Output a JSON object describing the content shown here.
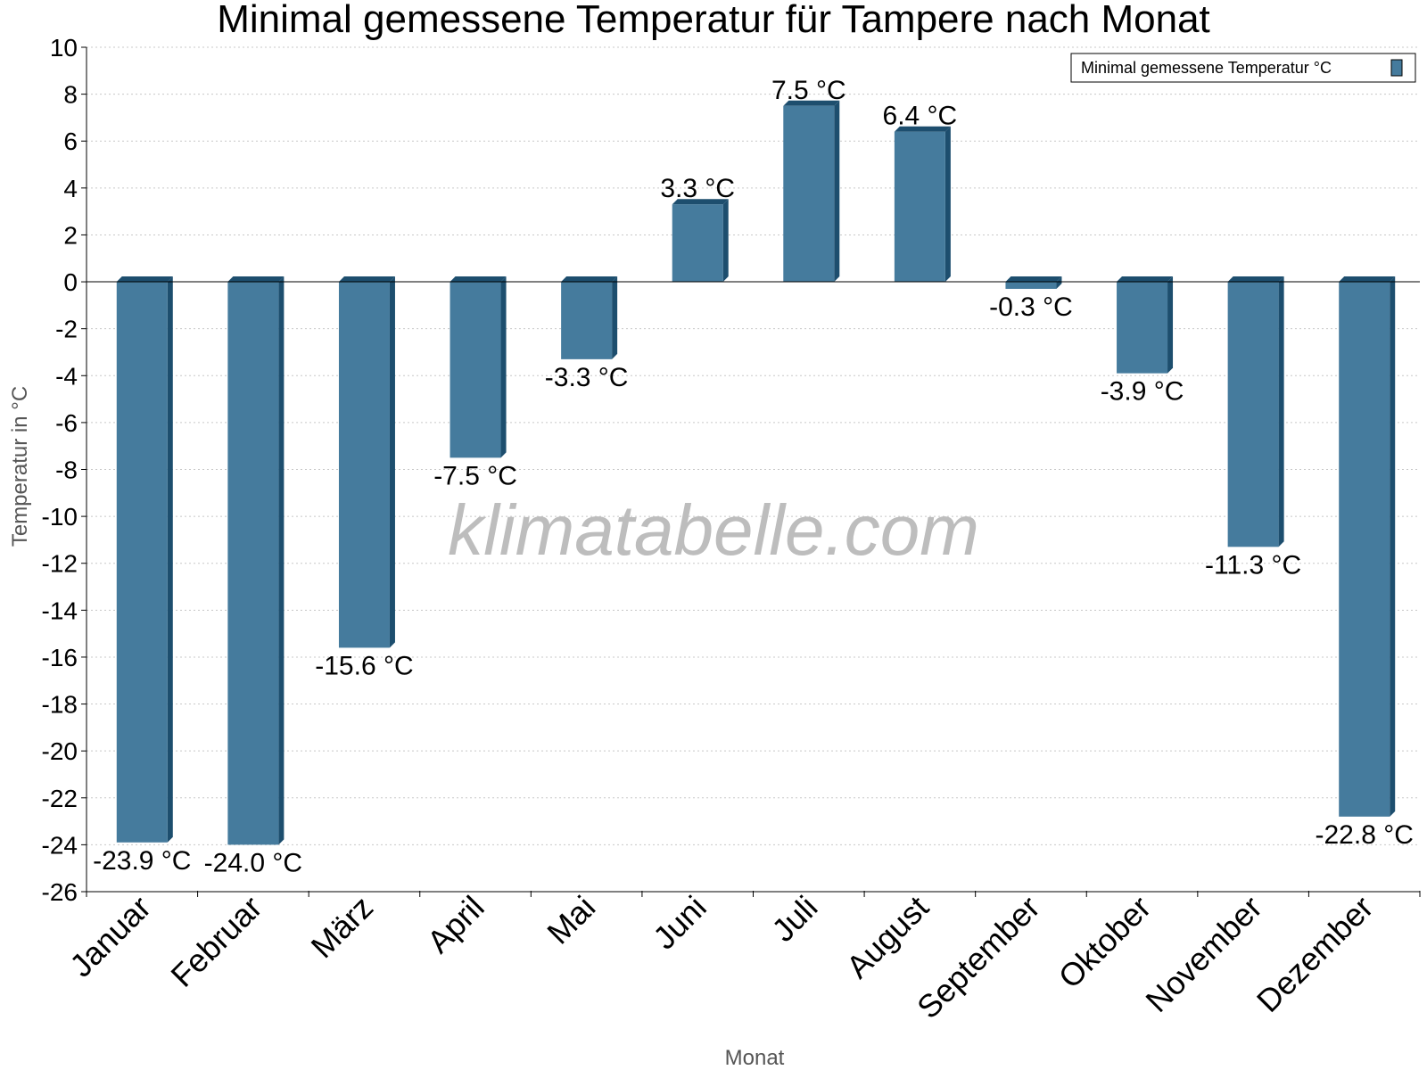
{
  "chart_data": {
    "type": "bar",
    "title": "Minimal gemessene Temperatur für Tampere nach Monat",
    "xlabel": "Monat",
    "ylabel": "Temperatur in °C",
    "ylim": [
      -26,
      10
    ],
    "ytick_step": 2,
    "grid": true,
    "legend_position": "top-right",
    "categories": [
      "Januar",
      "Februar",
      "März",
      "April",
      "Mai",
      "Juni",
      "Juli",
      "August",
      "September",
      "Oktober",
      "November",
      "Dezember"
    ],
    "series": [
      {
        "name": "Minimal gemessene Temperatur °C",
        "values": [
          -23.9,
          -24.0,
          -15.6,
          -7.5,
          -3.3,
          3.3,
          7.5,
          6.4,
          -0.3,
          -3.9,
          -11.3,
          -22.8
        ],
        "labels": [
          "-23.9 °C",
          "-24.0 °C",
          "-15.6 °C",
          "-7.5 °C",
          "-3.3 °C",
          "3.3 °C",
          "7.5 °C",
          "6.4 °C",
          "-0.3 °C",
          "-3.9 °C",
          "-11.3 °C",
          "-22.8 °C"
        ],
        "color": "#457b9d",
        "side_color": "#1d4e6e"
      }
    ],
    "watermark": "klimatabelle.com"
  }
}
